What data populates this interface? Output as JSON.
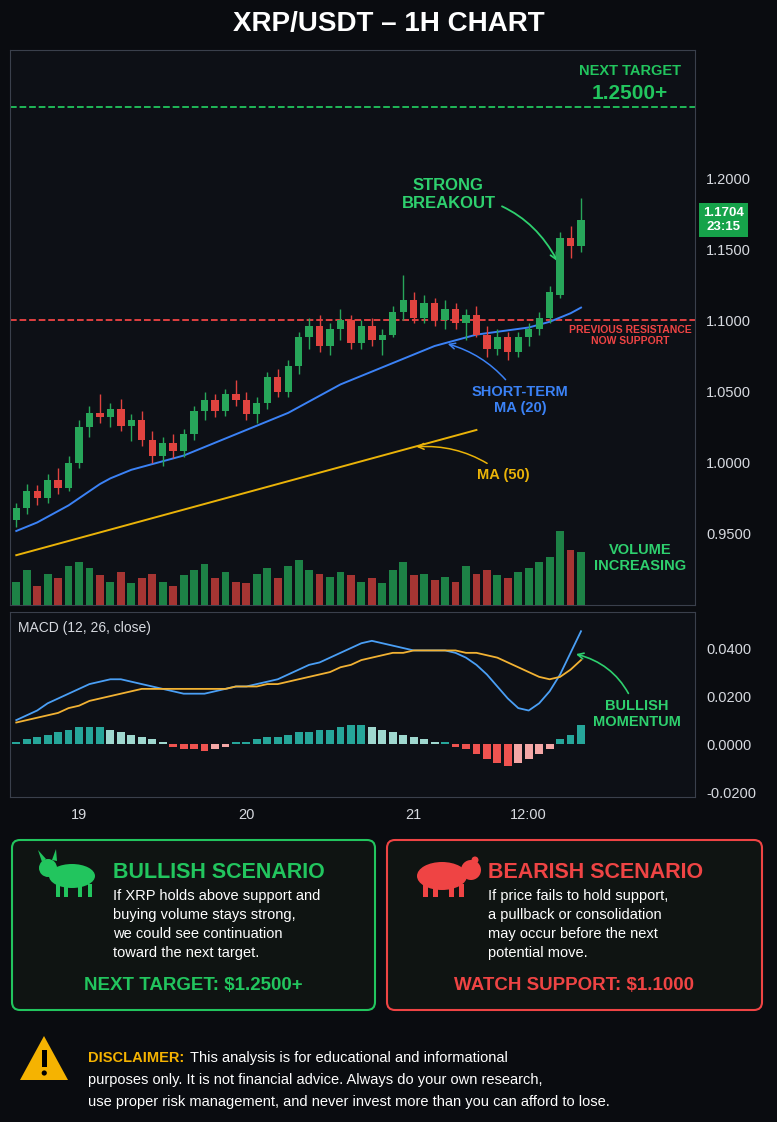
{
  "title": "XRP/USDT – 1H CHART",
  "chart_data": [
    {
      "type": "candlestick",
      "ylim": [
        0.9,
        1.29
      ],
      "yticks": [
        {
          "value": 0.95,
          "label": "0.9500"
        },
        {
          "value": 1.0,
          "label": "1.0000"
        },
        {
          "value": 1.05,
          "label": "1.0500"
        },
        {
          "value": 1.1,
          "label": "1.1000"
        },
        {
          "value": 1.15,
          "label": "1.1500"
        },
        {
          "value": 1.2,
          "label": "1.2000"
        }
      ],
      "tick_labels": "y",
      "grid": false,
      "open": [
        0.96,
        0.968,
        0.98,
        0.975,
        0.988,
        0.982,
        1.0,
        1.025,
        1.035,
        1.032,
        1.038,
        1.026,
        1.03,
        1.016,
        1.005,
        1.014,
        1.008,
        1.02,
        1.036,
        1.044,
        1.036,
        1.048,
        1.044,
        1.034,
        1.042,
        1.06,
        1.05,
        1.068,
        1.088,
        1.096,
        1.082,
        1.094,
        1.1,
        1.084,
        1.096,
        1.086,
        1.09,
        1.106,
        1.114,
        1.102,
        1.112,
        1.1,
        1.108,
        1.098,
        1.104,
        1.09,
        1.08,
        1.088,
        1.078,
        1.088,
        1.094,
        1.102,
        1.118,
        1.158,
        1.152
      ],
      "high": [
        0.972,
        0.985,
        0.984,
        0.992,
        0.996,
        1.005,
        1.03,
        1.04,
        1.048,
        1.042,
        1.045,
        1.034,
        1.036,
        1.022,
        1.018,
        1.02,
        1.024,
        1.04,
        1.05,
        1.048,
        1.052,
        1.058,
        1.05,
        1.046,
        1.064,
        1.066,
        1.072,
        1.092,
        1.102,
        1.104,
        1.098,
        1.108,
        1.104,
        1.1,
        1.102,
        1.094,
        1.11,
        1.132,
        1.12,
        1.118,
        1.116,
        1.114,
        1.112,
        1.108,
        1.11,
        1.096,
        1.094,
        1.092,
        1.092,
        1.098,
        1.106,
        1.124,
        1.162,
        1.166,
        1.186
      ],
      "low": [
        0.955,
        0.964,
        0.97,
        0.972,
        0.978,
        0.98,
        0.996,
        1.018,
        1.028,
        1.025,
        1.022,
        1.015,
        1.012,
        1.0,
        0.998,
        1.003,
        1.004,
        1.016,
        1.03,
        1.032,
        1.033,
        1.04,
        1.03,
        1.028,
        1.038,
        1.046,
        1.046,
        1.062,
        1.08,
        1.078,
        1.076,
        1.086,
        1.08,
        1.08,
        1.082,
        1.076,
        1.088,
        1.1,
        1.098,
        1.098,
        1.096,
        1.094,
        1.094,
        1.086,
        1.088,
        1.074,
        1.076,
        1.072,
        1.074,
        1.082,
        1.09,
        1.098,
        1.116,
        1.144,
        1.148
      ],
      "close": [
        0.968,
        0.98,
        0.975,
        0.988,
        0.982,
        1.0,
        1.025,
        1.035,
        1.032,
        1.038,
        1.026,
        1.03,
        1.016,
        1.005,
        1.014,
        1.008,
        1.02,
        1.036,
        1.044,
        1.036,
        1.048,
        1.044,
        1.034,
        1.042,
        1.06,
        1.05,
        1.068,
        1.088,
        1.096,
        1.082,
        1.094,
        1.1,
        1.084,
        1.096,
        1.086,
        1.09,
        1.106,
        1.114,
        1.102,
        1.112,
        1.1,
        1.108,
        1.098,
        1.104,
        1.09,
        1.08,
        1.088,
        1.078,
        1.088,
        1.094,
        1.102,
        1.12,
        1.158,
        1.152,
        1.1704
      ],
      "series": [
        {
          "name": "SHORT-TERM\nMA (20)",
          "type": "line",
          "color": "#3b82f6",
          "line_style": "solid",
          "values": [
            0.952,
            0.955,
            0.958,
            0.962,
            0.966,
            0.97,
            0.975,
            0.98,
            0.985,
            0.989,
            0.992,
            0.995,
            0.997,
            0.999,
            1.001,
            1.003,
            1.005,
            1.008,
            1.011,
            1.014,
            1.017,
            1.02,
            1.023,
            1.026,
            1.029,
            1.032,
            1.035,
            1.039,
            1.043,
            1.047,
            1.051,
            1.055,
            1.058,
            1.061,
            1.064,
            1.067,
            1.07,
            1.073,
            1.076,
            1.079,
            1.082,
            1.084,
            1.086,
            1.088,
            1.09,
            1.091,
            1.092,
            1.093,
            1.094,
            1.095,
            1.097,
            1.099,
            1.102,
            1.105,
            1.109
          ]
        },
        {
          "name": "MA (50)",
          "type": "line",
          "color": "#eab308",
          "line_style": "solid",
          "values": [
            0.935,
            0.937,
            0.939,
            0.941,
            0.943,
            0.945,
            0.947,
            0.949,
            0.951,
            0.953,
            0.955,
            0.957,
            0.959,
            0.961,
            0.963,
            0.965,
            0.967,
            0.969,
            0.971,
            0.973,
            0.975,
            0.977,
            0.979,
            0.981,
            0.983,
            0.985,
            0.987,
            0.989,
            0.991,
            0.993,
            0.995,
            0.997,
            0.999,
            1.001,
            1.003,
            1.005,
            1.007,
            1.009,
            1.011,
            1.013,
            1.015,
            1.017,
            1.019,
            1.021,
            1.023,
            null,
            null,
            null,
            null,
            null,
            null,
            null,
            null,
            null,
            null
          ]
        }
      ],
      "levels": [
        {
          "name": "NEXT TARGET",
          "value": 1.25,
          "label": "1.2500+",
          "color": "#22c55e",
          "line_style": "dashed"
        },
        {
          "name": "PREVIOUS RESISTANCE\nNOW SUPPORT",
          "value": 1.1,
          "color": "#ef4444",
          "line_style": "dashed"
        }
      ],
      "current_price": {
        "value": 1.1704,
        "label": "1.1704",
        "countdown": "23:15"
      },
      "annotations": [
        "STRONG\nBREAKOUT"
      ]
    },
    {
      "type": "bar",
      "ylim": [
        0,
        100
      ],
      "tick_labels": false,
      "grid": false,
      "values": [
        30,
        45,
        25,
        40,
        35,
        50,
        55,
        48,
        38,
        30,
        42,
        28,
        35,
        40,
        30,
        25,
        38,
        45,
        52,
        35,
        42,
        30,
        28,
        40,
        48,
        35,
        50,
        58,
        45,
        40,
        36,
        42,
        38,
        30,
        34,
        28,
        45,
        55,
        38,
        40,
        32,
        36,
        30,
        50,
        40,
        45,
        38,
        35,
        42,
        48,
        55,
        62,
        95,
        70,
        68
      ],
      "annotations": [
        "VOLUME\nINCREASING"
      ]
    },
    {
      "type": "line",
      "title": "MACD (12, 26, close)",
      "categories": [
        null,
        null,
        null,
        null,
        null,
        null,
        "19",
        null,
        null,
        null,
        null,
        null,
        null,
        null,
        null,
        null,
        null,
        null,
        null,
        null,
        null,
        null,
        "20",
        null,
        null,
        null,
        null,
        null,
        null,
        null,
        null,
        null,
        null,
        null,
        null,
        null,
        null,
        null,
        "21",
        null,
        null,
        null,
        null,
        null,
        null,
        null,
        null,
        null,
        null,
        "12:00",
        null,
        null,
        null,
        null,
        null
      ],
      "ylim": [
        -0.022,
        0.055
      ],
      "yticks": [
        {
          "value": 0.04,
          "label": "0.0400"
        },
        {
          "value": 0.02,
          "label": "0.0200"
        },
        {
          "value": 0,
          "label": "0.0000"
        },
        {
          "value": -0.02,
          "label": "-0.0200"
        }
      ],
      "grid": false,
      "series": [
        {
          "type": "line",
          "color": "#4a9ff5",
          "values": [
            0.01,
            0.012,
            0.014,
            0.017,
            0.019,
            0.021,
            0.023,
            0.025,
            0.026,
            0.027,
            0.027,
            0.026,
            0.025,
            0.024,
            0.023,
            0.022,
            0.021,
            0.021,
            0.021,
            0.022,
            0.023,
            0.024,
            0.024,
            0.025,
            0.026,
            0.027,
            0.029,
            0.031,
            0.033,
            0.034,
            0.036,
            0.038,
            0.04,
            0.042,
            0.043,
            0.042,
            0.041,
            0.04,
            0.039,
            0.039,
            0.039,
            0.039,
            0.038,
            0.036,
            0.033,
            0.029,
            0.024,
            0.019,
            0.015,
            0.014,
            0.017,
            0.022,
            0.029,
            0.038,
            0.047
          ]
        },
        {
          "type": "line",
          "color": "#f2b233",
          "values": [
            0.009,
            0.01,
            0.011,
            0.012,
            0.013,
            0.015,
            0.016,
            0.018,
            0.019,
            0.02,
            0.021,
            0.022,
            0.023,
            0.023,
            0.023,
            0.023,
            0.023,
            0.023,
            0.023,
            0.023,
            0.023,
            0.024,
            0.024,
            0.024,
            0.025,
            0.025,
            0.026,
            0.027,
            0.028,
            0.029,
            0.03,
            0.032,
            0.033,
            0.035,
            0.036,
            0.037,
            0.038,
            0.038,
            0.039,
            0.039,
            0.039,
            0.039,
            0.039,
            0.038,
            0.038,
            0.037,
            0.036,
            0.034,
            0.032,
            0.03,
            0.028,
            0.027,
            0.028,
            0.031,
            0.035
          ]
        },
        {
          "type": "bar",
          "values": [
            0.001,
            0.002,
            0.003,
            0.004,
            0.005,
            0.006,
            0.007,
            0.007,
            0.007,
            0.006,
            0.005,
            0.004,
            0.003,
            0.002,
            0.001,
            -0.001,
            -0.002,
            -0.002,
            -0.003,
            -0.002,
            -0.001,
            0.001,
            0.001,
            0.002,
            0.003,
            0.003,
            0.004,
            0.005,
            0.005,
            0.006,
            0.006,
            0.007,
            0.008,
            0.008,
            0.007,
            0.006,
            0.005,
            0.004,
            0.003,
            0.002,
            0.001,
            0.001,
            -0.001,
            -0.002,
            -0.004,
            -0.006,
            -0.008,
            -0.009,
            -0.008,
            -0.006,
            -0.004,
            -0.002,
            0.002,
            0.004,
            0.008
          ]
        }
      ],
      "annotations": [
        "BULLISH\nMOMENTUM"
      ]
    }
  ],
  "scenarios": [
    {
      "title": "BULLISH SCENARIO",
      "color": "#22c55e",
      "text": "If XRP holds above support and\nbuying volume stays strong,\nwe could see continuation\ntoward the next target.",
      "footer": "NEXT TARGET: $1.2500+"
    },
    {
      "title": "BEARISH SCENARIO",
      "color": "#ef4444",
      "text": "If price fails to hold support,\na pullback or consolidation\nmay occur before the next\npotential move.",
      "footer": "WATCH SUPPORT: $1.1000"
    }
  ],
  "disclaimer": {
    "label": "DISCLAIMER:",
    "text": "This analysis is for educational and informational\npurposes only. It is not financial advice. Always do your own research,\nuse proper risk management, and never invest more than you can afford to lose."
  }
}
